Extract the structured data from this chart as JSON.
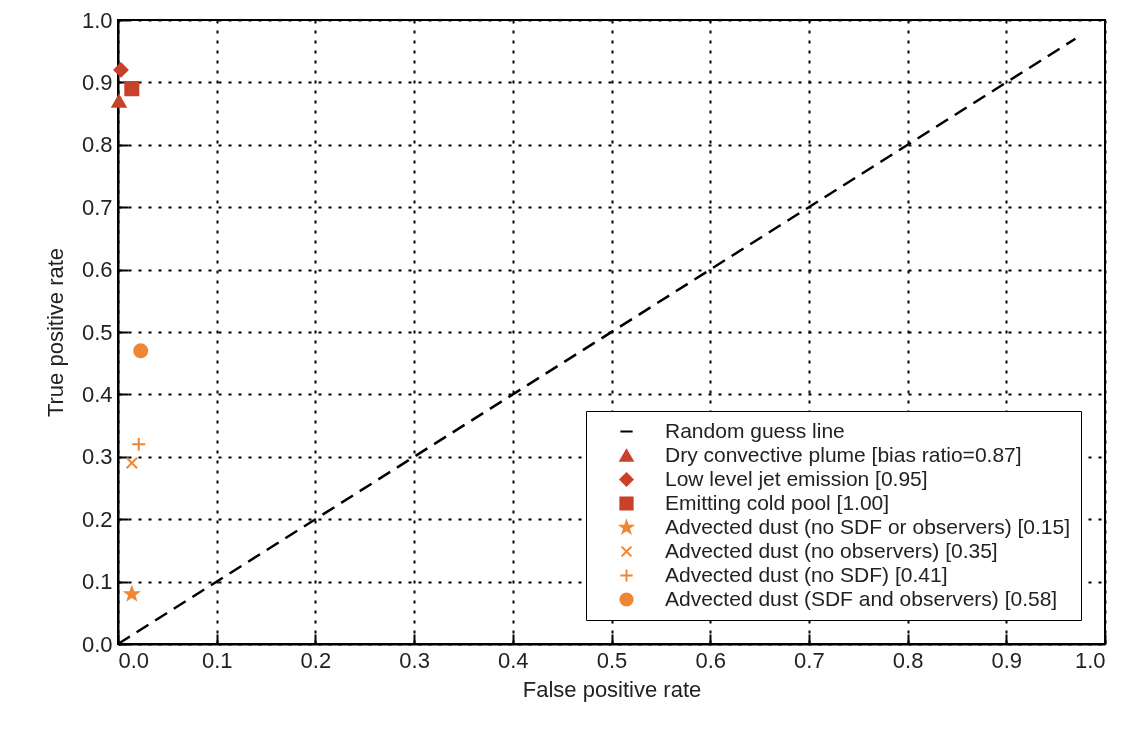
{
  "chart_data": {
    "type": "scatter",
    "xlabel": "False positive rate",
    "ylabel": "True positive rate",
    "xlim": [
      0,
      1
    ],
    "ylim": [
      0,
      1
    ],
    "xticks": [
      {
        "value": 0,
        "label": "0.0"
      },
      0.1,
      0.2,
      0.3,
      0.4,
      0.5,
      0.6,
      0.7,
      0.8,
      0.9,
      {
        "value": 1,
        "label": "1.0"
      }
    ],
    "yticks": [
      {
        "value": 0,
        "label": "0.0"
      },
      0.1,
      0.2,
      0.3,
      0.4,
      0.5,
      0.6,
      0.7,
      0.8,
      0.9,
      {
        "value": 1,
        "label": "1.0"
      }
    ],
    "grid": true,
    "legend": "bottom right",
    "series": [
      {
        "name": "Random guess line",
        "type": "line",
        "line_style": "dashed",
        "color": "#000000",
        "x": [
          0,
          0.97
        ],
        "values": [
          0,
          0.97
        ]
      },
      {
        "name": "Dry convective plume [bias ratio=0.87]",
        "type": "scatter",
        "marker": "triangle",
        "color": "#c8412b",
        "x": [
          0.001
        ],
        "values": [
          0.87
        ]
      },
      {
        "name": "Low level jet emission [0.95]",
        "type": "scatter",
        "marker": "diamond",
        "color": "#c8412b",
        "x": [
          0.003
        ],
        "values": [
          0.92
        ]
      },
      {
        "name": "Emitting cold pool [1.00]",
        "type": "scatter",
        "marker": "square",
        "color": "#c8412b",
        "x": [
          0.014
        ],
        "values": [
          0.89
        ]
      },
      {
        "name": "Advected dust (no SDF or observers) [0.15]",
        "type": "scatter",
        "marker": "star",
        "color": "#ef8633",
        "x": [
          0.014
        ],
        "values": [
          0.08
        ]
      },
      {
        "name": "Advected dust (no observers) [0.35]",
        "type": "scatter",
        "marker": "x",
        "color": "#ef8633",
        "x": [
          0.014
        ],
        "values": [
          0.29
        ]
      },
      {
        "name": "Advected dust (no SDF) [0.41]",
        "type": "scatter",
        "marker": "plus",
        "color": "#ef8633",
        "x": [
          0.021
        ],
        "values": [
          0.32
        ]
      },
      {
        "name": "Advected dust (SDF and observers) [0.58]",
        "type": "scatter",
        "marker": "circle",
        "color": "#ef8633",
        "x": [
          0.023
        ],
        "values": [
          0.47
        ]
      }
    ]
  }
}
